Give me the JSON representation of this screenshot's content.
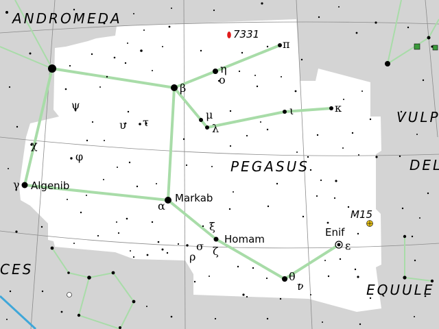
{
  "constellations": {
    "main": "PEGASUS",
    "andromeda": "ANDROMEDA",
    "vulpecula": "VULP",
    "delphinus": "DEL",
    "equuleus": "EQUULE",
    "pisces": "CES"
  },
  "star_names": {
    "algenib": "Algenib",
    "markab": "Markab",
    "homam": "Homam",
    "enif": "Enif"
  },
  "greek_letters": {
    "pi": "π",
    "eta": "η",
    "omicron": "ο",
    "beta": "β",
    "psi": "ψ",
    "mu": "μ",
    "lambda": "λ",
    "iota": "ι",
    "kappa": "κ",
    "upsilon": "υ",
    "tau": "τ",
    "chi": "χ",
    "phi": "φ",
    "gamma": "γ",
    "alpha": "α",
    "xi": "ξ",
    "zeta": "ζ",
    "sigma": "σ",
    "rho": "ρ",
    "epsilon": "ε",
    "theta": "θ",
    "nu": "ν"
  },
  "deep_sky": {
    "ngc7331": "7331",
    "m15": "M15"
  },
  "colors": {
    "background": "#d4d4d4",
    "constellation_area": "#ffffff",
    "stick_figure": "#a8dca8",
    "grid": "#8a8a8a",
    "galaxy": "#e01b1b",
    "cluster": "#e8c21a",
    "ecliptic": "#3fa7d9",
    "open_cluster": "#3a9a3a"
  }
}
